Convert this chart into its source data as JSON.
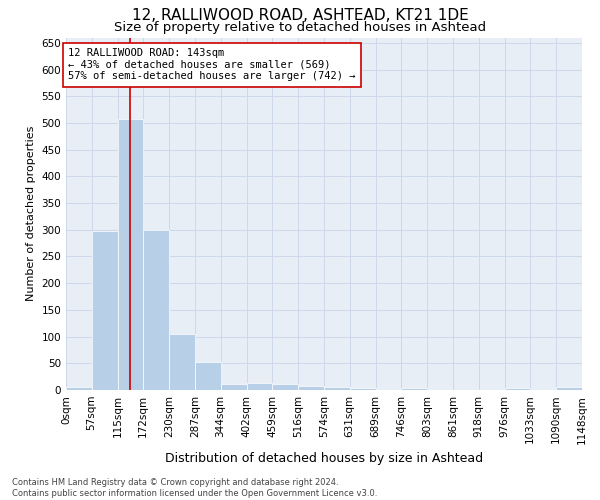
{
  "title1": "12, RALLIWOOD ROAD, ASHTEAD, KT21 1DE",
  "title2": "Size of property relative to detached houses in Ashtead",
  "xlabel": "Distribution of detached houses by size in Ashtead",
  "ylabel": "Number of detached properties",
  "footnote": "Contains HM Land Registry data © Crown copyright and database right 2024.\nContains public sector information licensed under the Open Government Licence v3.0.",
  "bin_edges": [
    0,
    57,
    115,
    172,
    230,
    287,
    344,
    402,
    459,
    516,
    574,
    631,
    689,
    746,
    803,
    861,
    918,
    976,
    1033,
    1090,
    1148
  ],
  "bar_heights": [
    5,
    298,
    507,
    300,
    105,
    52,
    12,
    14,
    12,
    7,
    5,
    3,
    0,
    4,
    0,
    0,
    0,
    4,
    0,
    6
  ],
  "bar_color": "#b8cfe8",
  "grid_color": "#c8d4e8",
  "bg_color": "#e8eef6",
  "property_size": 143,
  "red_line_color": "#cc0000",
  "annotation_box_color": "#cc0000",
  "annotation_line1": "12 RALLIWOOD ROAD: 143sqm",
  "annotation_line2": "← 43% of detached houses are smaller (569)",
  "annotation_line3": "57% of semi-detached houses are larger (742) →",
  "ylim": [
    0,
    660
  ],
  "yticks": [
    0,
    50,
    100,
    150,
    200,
    250,
    300,
    350,
    400,
    450,
    500,
    550,
    600,
    650
  ],
  "title1_fontsize": 11,
  "title2_fontsize": 9.5,
  "xlabel_fontsize": 9,
  "ylabel_fontsize": 8,
  "tick_label_fontsize": 7.5,
  "annotation_fontsize": 7.5,
  "footnote_fontsize": 6
}
